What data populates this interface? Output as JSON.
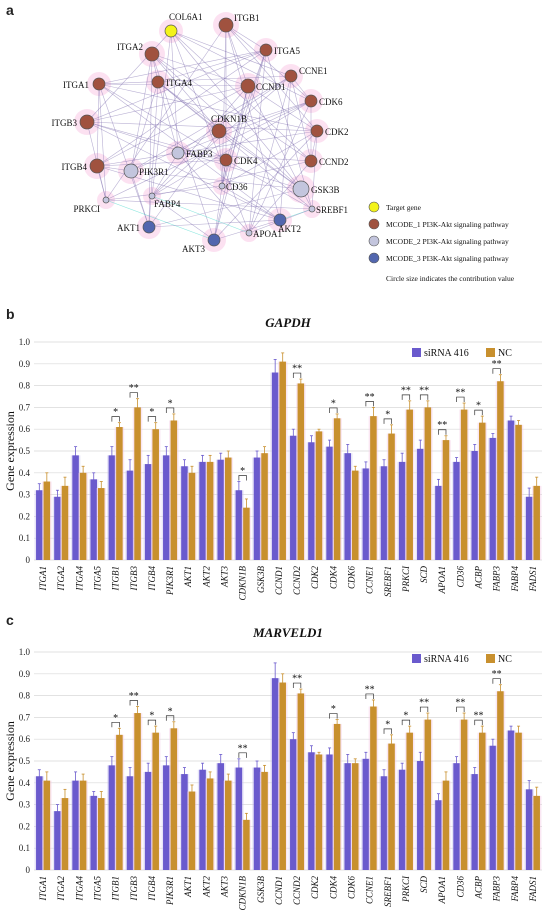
{
  "panels": {
    "a": "a",
    "b": "b",
    "c": "c"
  },
  "network": {
    "nodes": [
      {
        "id": "COL6A1",
        "label": "COL6A1",
        "group": "target"
      },
      {
        "id": "ITGB1",
        "label": "ITGB1",
        "group": "m1"
      },
      {
        "id": "ITGA2",
        "label": "ITGA2",
        "group": "m1"
      },
      {
        "id": "ITGA5",
        "label": "ITGA5",
        "group": "m1"
      },
      {
        "id": "CCNE1",
        "label": "CCNE1",
        "group": "m1"
      },
      {
        "id": "ITGA1",
        "label": "ITGA1",
        "group": "m1"
      },
      {
        "id": "ITGA4",
        "label": "ITGA4",
        "group": "m1"
      },
      {
        "id": "CCND1",
        "label": "CCND1",
        "group": "m1"
      },
      {
        "id": "CDK6",
        "label": "CDK6",
        "group": "m1"
      },
      {
        "id": "ITGB3",
        "label": "ITGB3",
        "group": "m1"
      },
      {
        "id": "CDKN1B",
        "label": "CDKN1B",
        "group": "m1"
      },
      {
        "id": "CDK2",
        "label": "CDK2",
        "group": "m1"
      },
      {
        "id": "FABP3",
        "label": "FABP3",
        "group": "m2"
      },
      {
        "id": "ITGB4",
        "label": "ITGB4",
        "group": "m1"
      },
      {
        "id": "PIK3R1",
        "label": "PIK3R1",
        "group": "m2"
      },
      {
        "id": "CDK4",
        "label": "CDK4",
        "group": "m1"
      },
      {
        "id": "CCND2",
        "label": "CCND2",
        "group": "m1"
      },
      {
        "id": "CD36",
        "label": "CD36",
        "group": "m2"
      },
      {
        "id": "GSK3B",
        "label": "GSK3B",
        "group": "m2"
      },
      {
        "id": "PRKCI",
        "label": "PRKCI",
        "group": "m2"
      },
      {
        "id": "FABP4",
        "label": "FABP4",
        "group": "m2"
      },
      {
        "id": "SREBF1",
        "label": "SREBF1",
        "group": "m2"
      },
      {
        "id": "AKT1",
        "label": "AKT1",
        "group": "m3"
      },
      {
        "id": "AKT2",
        "label": "AKT2",
        "group": "m3"
      },
      {
        "id": "APOA1",
        "label": "APOA1",
        "group": "m2"
      },
      {
        "id": "AKT3",
        "label": "AKT3",
        "group": "m3"
      }
    ],
    "legend": [
      {
        "label": "Target gene",
        "color": "#f3f31a"
      },
      {
        "label": "MCODE_1 PI3K-Akt signaling pathway",
        "color": "#a0523f"
      },
      {
        "label": "MCODE_2 PI3K-Akt signaling pathway",
        "color": "#c3c5dd"
      },
      {
        "label": "MCODE_3 PI3K-Akt signaling pathway",
        "color": "#5266ae"
      }
    ],
    "note": "Circle size indicates the contribution value",
    "colors": {
      "target": "#f3f31a",
      "m1": "#a0523f",
      "m2": "#c3c5dd",
      "m3": "#5266ae",
      "edge": "#8070b0",
      "edge_alt": "#2fd3c4",
      "halo": "#f7a9d6"
    }
  },
  "chart_data": [
    {
      "type": "bar",
      "title": "GAPDH",
      "ylabel": "Gene expression",
      "ylim": [
        0,
        1.0
      ],
      "yticks": [
        "0",
        "0.1",
        "0.2",
        "0.3",
        "0.4",
        "0.5",
        "0.6",
        "0.7",
        "0.8",
        "0.9",
        "1.0"
      ],
      "categories": [
        "ITGA1",
        "ITGA2",
        "ITGA4",
        "ITGA5",
        "ITGB1",
        "ITGB3",
        "ITGB4",
        "PIK3R1",
        "AKT1",
        "AKT2",
        "AKT3",
        "CDKN1B",
        "GSK3B",
        "CCND1",
        "CCND2",
        "CDK2",
        "CDK4",
        "CDK6",
        "CCNE1",
        "SREBF1",
        "PRKCI",
        "SCD",
        "APOA1",
        "CD36",
        "ACBP",
        "FABP3",
        "FABP4",
        "FADS1"
      ],
      "series": [
        {
          "name": "siRNA 416",
          "color": "#6a5acd",
          "values": [
            0.32,
            0.29,
            0.48,
            0.37,
            0.48,
            0.41,
            0.44,
            0.48,
            0.43,
            0.45,
            0.46,
            0.32,
            0.47,
            0.86,
            0.57,
            0.54,
            0.52,
            0.49,
            0.42,
            0.43,
            0.45,
            0.51,
            0.34,
            0.45,
            0.5,
            0.56,
            0.64,
            0.29
          ]
        },
        {
          "name": "NC",
          "color": "#c8902e",
          "values": [
            0.36,
            0.34,
            0.4,
            0.33,
            0.61,
            0.7,
            0.6,
            0.64,
            0.4,
            0.45,
            0.47,
            0.24,
            0.49,
            0.91,
            0.81,
            0.59,
            0.65,
            0.41,
            0.66,
            0.58,
            0.69,
            0.7,
            0.55,
            0.69,
            0.63,
            0.82,
            0.62,
            0.34
          ]
        }
      ],
      "errors": [
        [
          0.03,
          0.03,
          0.04,
          0.03,
          0.04,
          0.05,
          0.04,
          0.04,
          0.03,
          0.03,
          0.03,
          0.04,
          0.03,
          0.06,
          0.03,
          0.03,
          0.03,
          0.04,
          0.03,
          0.03,
          0.04,
          0.04,
          0.03,
          0.02,
          0.03,
          0.02,
          0.02,
          0.04
        ],
        [
          0.04,
          0.04,
          0.03,
          0.03,
          0.02,
          0.04,
          0.03,
          0.03,
          0.03,
          0.03,
          0.03,
          0.04,
          0.03,
          0.04,
          0.02,
          0.01,
          0.02,
          0.02,
          0.04,
          0.04,
          0.04,
          0.03,
          0.02,
          0.03,
          0.03,
          0.03,
          0.02,
          0.04
        ]
      ],
      "significance": [
        {
          "category": "ITGB1",
          "label": "*"
        },
        {
          "category": "ITGB3",
          "label": "**"
        },
        {
          "category": "ITGB4",
          "label": "*"
        },
        {
          "category": "PIK3R1",
          "label": "*"
        },
        {
          "category": "CDKN1B",
          "label": "*"
        },
        {
          "category": "CCND2",
          "label": "**"
        },
        {
          "category": "CDK4",
          "label": "*"
        },
        {
          "category": "CCNE1",
          "label": "**"
        },
        {
          "category": "SREBF1",
          "label": "*"
        },
        {
          "category": "PRKCI",
          "label": "**"
        },
        {
          "category": "SCD",
          "label": "**"
        },
        {
          "category": "APOA1",
          "label": "**"
        },
        {
          "category": "CD36",
          "label": "**"
        },
        {
          "category": "ACBP",
          "label": "*"
        },
        {
          "category": "FABP3",
          "label": "**"
        }
      ],
      "legend_position": "top-right",
      "grid": true
    },
    {
      "type": "bar",
      "title": "MARVELD1",
      "ylabel": "Gene expression",
      "ylim": [
        0,
        1.0
      ],
      "yticks": [
        "0",
        "0.1",
        "0.2",
        "0.3",
        "0.4",
        "0.5",
        "0.6",
        "0.7",
        "0.8",
        "0.9",
        "1.0"
      ],
      "categories": [
        "ITGA1",
        "ITGA2",
        "ITGA4",
        "ITGA5",
        "ITGB1",
        "ITGB3",
        "ITGB4",
        "PIK3R1",
        "AKT1",
        "AKT2",
        "AKT3",
        "CDKN1B",
        "GSK3B",
        "CCND1",
        "CCND2",
        "CDK2",
        "CDK4",
        "CDK6",
        "CCNE1",
        "SREBF1",
        "PRKCI",
        "SCD",
        "APOA1",
        "CD36",
        "ACBP",
        "FABP3",
        "FABP4",
        "FADS1"
      ],
      "series": [
        {
          "name": "siRNA 416",
          "color": "#6a5acd",
          "values": [
            0.43,
            0.27,
            0.41,
            0.34,
            0.48,
            0.43,
            0.45,
            0.48,
            0.44,
            0.46,
            0.49,
            0.47,
            0.47,
            0.88,
            0.6,
            0.54,
            0.53,
            0.49,
            0.51,
            0.43,
            0.46,
            0.5,
            0.32,
            0.49,
            0.44,
            0.57,
            0.64,
            0.37
          ]
        },
        {
          "name": "NC",
          "color": "#c8902e",
          "values": [
            0.41,
            0.33,
            0.41,
            0.33,
            0.62,
            0.72,
            0.63,
            0.65,
            0.36,
            0.42,
            0.41,
            0.23,
            0.45,
            0.86,
            0.81,
            0.53,
            0.67,
            0.49,
            0.75,
            0.58,
            0.63,
            0.69,
            0.41,
            0.69,
            0.63,
            0.82,
            0.63,
            0.34
          ]
        }
      ],
      "errors": [
        [
          0.03,
          0.03,
          0.04,
          0.02,
          0.04,
          0.04,
          0.04,
          0.04,
          0.03,
          0.03,
          0.04,
          0.04,
          0.03,
          0.07,
          0.03,
          0.03,
          0.03,
          0.04,
          0.03,
          0.03,
          0.03,
          0.04,
          0.03,
          0.03,
          0.03,
          0.03,
          0.02,
          0.04
        ],
        [
          0.04,
          0.04,
          0.03,
          0.03,
          0.03,
          0.03,
          0.03,
          0.03,
          0.03,
          0.03,
          0.03,
          0.03,
          0.03,
          0.04,
          0.02,
          0.01,
          0.02,
          0.02,
          0.03,
          0.04,
          0.03,
          0.03,
          0.04,
          0.03,
          0.03,
          0.03,
          0.03,
          0.04
        ]
      ],
      "significance": [
        {
          "category": "ITGB1",
          "label": "*"
        },
        {
          "category": "ITGB3",
          "label": "**"
        },
        {
          "category": "ITGB4",
          "label": "*"
        },
        {
          "category": "PIK3R1",
          "label": "*"
        },
        {
          "category": "CDKN1B",
          "label": "**"
        },
        {
          "category": "CCND2",
          "label": "**"
        },
        {
          "category": "CDK4",
          "label": "*"
        },
        {
          "category": "CCNE1",
          "label": "**"
        },
        {
          "category": "SREBF1",
          "label": "*"
        },
        {
          "category": "PRKCI",
          "label": "*"
        },
        {
          "category": "SCD",
          "label": "**"
        },
        {
          "category": "CD36",
          "label": "**"
        },
        {
          "category": "ACBP",
          "label": "**"
        },
        {
          "category": "FABP3",
          "label": "**"
        }
      ],
      "legend_position": "top-right",
      "grid": true
    }
  ]
}
